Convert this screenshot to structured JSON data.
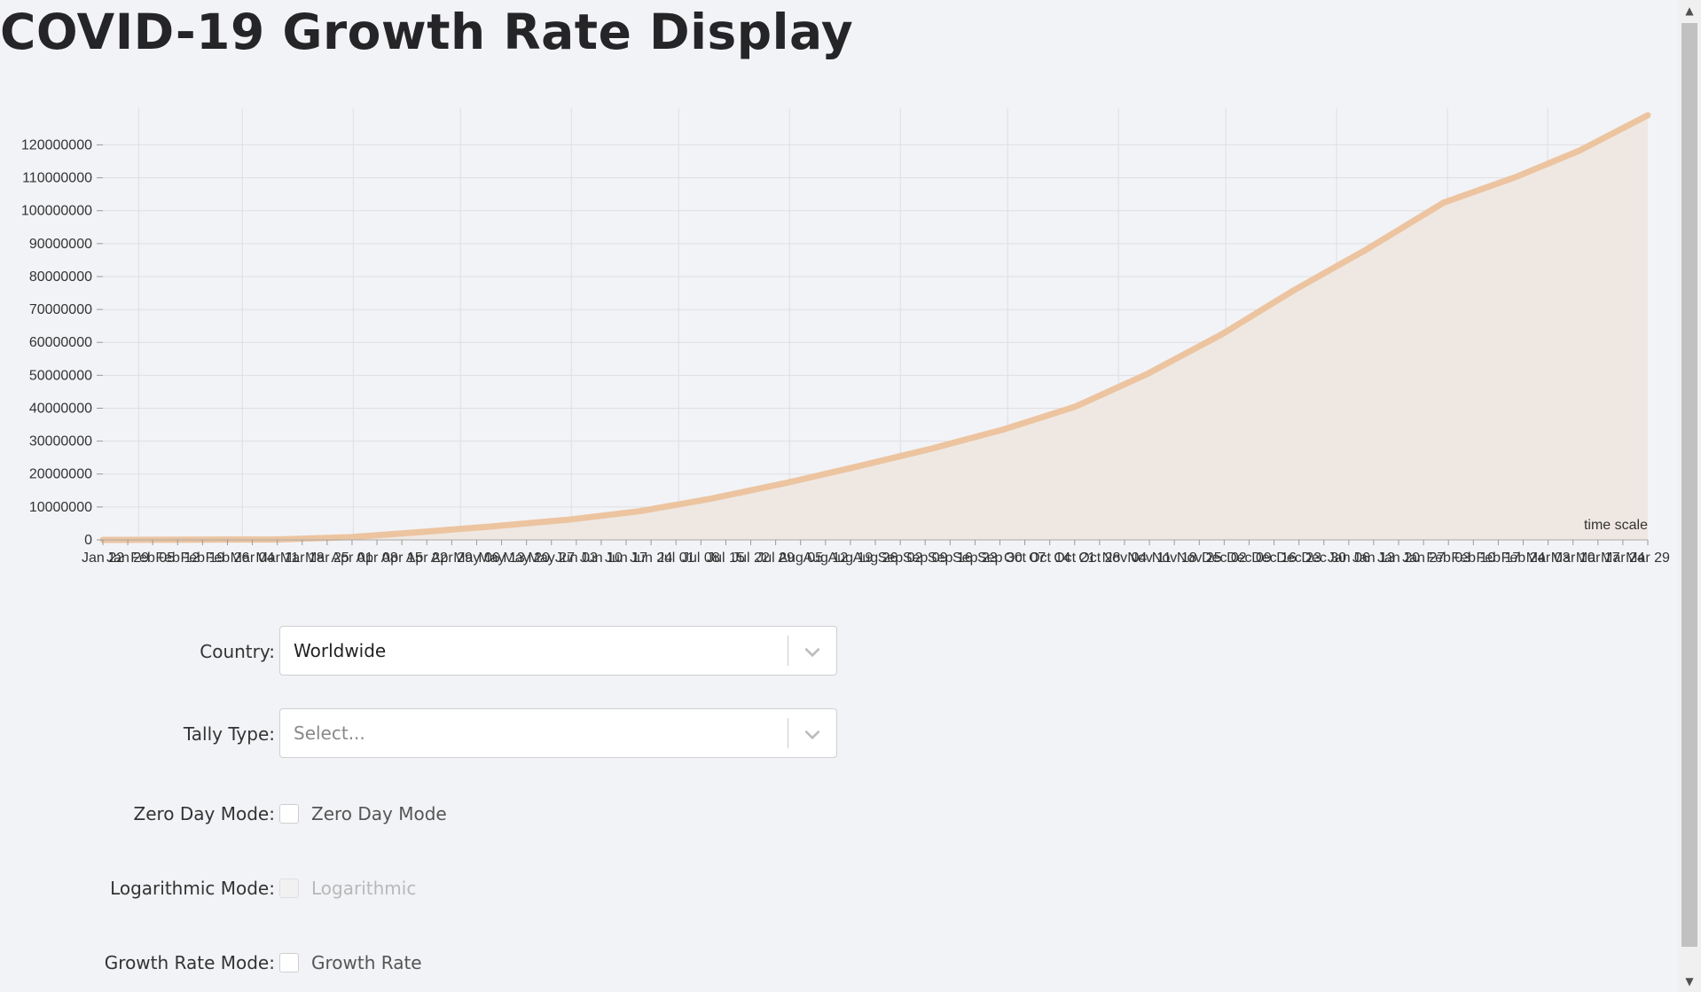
{
  "page": {
    "title": "COVID-19 Growth Rate Display"
  },
  "chart_data": {
    "type": "area",
    "ylim": [
      0,
      129000000
    ],
    "y_ticks": [
      0,
      10000000,
      20000000,
      30000000,
      40000000,
      50000000,
      60000000,
      70000000,
      80000000,
      90000000,
      100000000,
      110000000,
      120000000
    ],
    "x_range": [
      "2020-01-22",
      "2021-03-29"
    ],
    "x_tick_labels": [
      "Jan 22",
      "Jan 29",
      "Feb 05",
      "Feb 12",
      "Feb 19",
      "Feb 26",
      "Mar 04",
      "Mar 11",
      "Mar 18",
      "Mar 25",
      "Apr 01",
      "Apr 08",
      "Apr 15",
      "Apr 22",
      "Apr 29",
      "May 06",
      "May 13",
      "May 20",
      "May 27",
      "Jun 03",
      "Jun 10",
      "Jun 17",
      "Jun 24",
      "Jul 01",
      "Jul 08",
      "Jul 15",
      "Jul 22",
      "Jul 29",
      "Aug 05",
      "Aug 12",
      "Aug 19",
      "Aug 26",
      "Sep 02",
      "Sep 09",
      "Sep 16",
      "Sep 23",
      "Sep 30",
      "Oct 07",
      "Oct 14",
      "Oct 21",
      "Oct 28",
      "Nov 04",
      "Nov 11",
      "Nov 18",
      "Nov 25",
      "Dec 02",
      "Dec 09",
      "Dec 16",
      "Dec 23",
      "Dec 30",
      "Jan 06",
      "Jan 13",
      "Jan 20",
      "Jan 27",
      "Feb 03",
      "Feb 10",
      "Feb 17",
      "Feb 24",
      "Mar 03",
      "Mar 10",
      "Mar 17",
      "Mar 24",
      "Mar 29"
    ],
    "series_points": [
      [
        "2020-01-22",
        0
      ],
      [
        "2020-02-15",
        70000
      ],
      [
        "2020-03-10",
        120000
      ],
      [
        "2020-03-31",
        800000
      ],
      [
        "2020-04-20",
        2400000
      ],
      [
        "2020-05-10",
        4100000
      ],
      [
        "2020-05-31",
        6100000
      ],
      [
        "2020-06-20",
        8700000
      ],
      [
        "2020-07-10",
        12500000
      ],
      [
        "2020-07-31",
        17300000
      ],
      [
        "2020-08-20",
        22300000
      ],
      [
        "2020-09-10",
        27800000
      ],
      [
        "2020-09-30",
        33600000
      ],
      [
        "2020-10-20",
        40500000
      ],
      [
        "2020-11-09",
        50400000
      ],
      [
        "2020-11-30",
        62500000
      ],
      [
        "2020-12-20",
        75800000
      ],
      [
        "2021-01-09",
        88000000
      ],
      [
        "2021-01-31",
        102500000
      ],
      [
        "2021-02-20",
        110200000
      ],
      [
        "2021-03-10",
        118300000
      ],
      [
        "2021-03-29",
        129000000
      ]
    ],
    "annotation": "time scale",
    "line_color": "#ecc4a0",
    "fill_color": "#efe8e2",
    "grid": true
  },
  "form": {
    "country": {
      "label": "Country",
      "value": "Worldwide"
    },
    "tally": {
      "label": "Tally Type",
      "placeholder": "Select..."
    },
    "zero_day": {
      "label": "Zero Day Mode",
      "option": "Zero Day Mode"
    },
    "log": {
      "label": "Logarithmic Mode",
      "option": "Logarithmic"
    },
    "growth": {
      "label": "Growth Rate Mode",
      "option": "Growth Rate"
    }
  }
}
